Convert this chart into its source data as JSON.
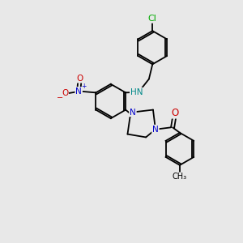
{
  "bg_color": "#e8e8e8",
  "bond_color": "#000000",
  "atom_colors": {
    "N": "#0000cc",
    "O": "#cc0000",
    "Cl": "#00aa00",
    "C": "#000000",
    "H": "#008888"
  },
  "font_size": 7.5
}
